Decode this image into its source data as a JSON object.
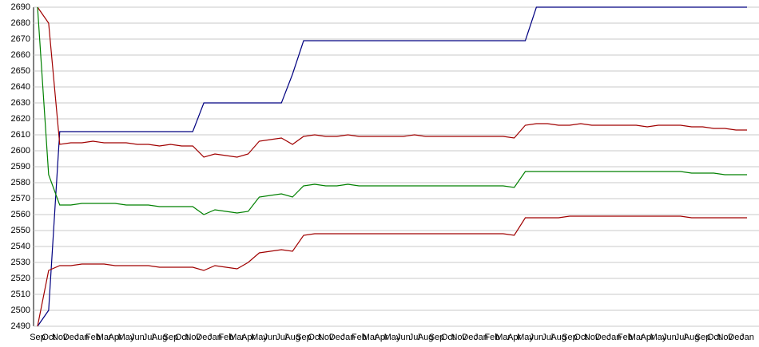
{
  "chart_data": {
    "type": "line",
    "categories": [
      "Sep",
      "Oct",
      "Nov",
      "Dec",
      "Jan",
      "Feb",
      "Mar",
      "Apr",
      "May",
      "Jun",
      "Jul",
      "Aug",
      "Sep",
      "Oct",
      "Nov",
      "Dec",
      "Jan",
      "Feb",
      "Mar",
      "Apr",
      "May",
      "Jun",
      "Jul",
      "Aug",
      "Sep",
      "Oct",
      "Nov",
      "Dec",
      "Jan",
      "Feb",
      "Mar",
      "Apr",
      "May",
      "Jun",
      "Jul",
      "Aug",
      "Sep",
      "Oct",
      "Nov",
      "Dec",
      "Jan",
      "Feb",
      "Mar",
      "Apr",
      "May",
      "Jun",
      "Jul",
      "Aug",
      "Sep",
      "Oct",
      "Nov",
      "Dec",
      "Jan",
      "Feb",
      "Mar",
      "Apr",
      "May",
      "Jun",
      "Jul",
      "Aug",
      "Sep",
      "Oct",
      "Nov",
      "Dec",
      "Jan"
    ],
    "series": [
      {
        "color": "#000080",
        "values": [
          2490,
          2500,
          2612,
          2612,
          2612,
          2612,
          2612,
          2612,
          2612,
          2612,
          2612,
          2612,
          2612,
          2612,
          2612,
          2630,
          2630,
          2630,
          2630,
          2630,
          2630,
          2630,
          2630,
          2648,
          2669,
          2669,
          2669,
          2669,
          2669,
          2669,
          2669,
          2669,
          2669,
          2669,
          2669,
          2669,
          2669,
          2669,
          2669,
          2669,
          2669,
          2669,
          2669,
          2669,
          2669,
          2690,
          2690,
          2690,
          2690,
          2690,
          2690,
          2690,
          2690,
          2690,
          2690,
          2690,
          2690,
          2690,
          2690,
          2690,
          2690,
          2690,
          2690,
          2690,
          2690
        ]
      },
      {
        "color": "#a00000",
        "values": [
          2690,
          2680,
          2604,
          2605,
          2605,
          2606,
          2605,
          2605,
          2605,
          2604,
          2604,
          2603,
          2604,
          2603,
          2603,
          2596,
          2598,
          2597,
          2596,
          2598,
          2606,
          2607,
          2608,
          2604,
          2609,
          2610,
          2609,
          2609,
          2610,
          2609,
          2609,
          2609,
          2609,
          2609,
          2610,
          2609,
          2609,
          2609,
          2609,
          2609,
          2609,
          2609,
          2609,
          2608,
          2616,
          2617,
          2617,
          2616,
          2616,
          2617,
          2616,
          2616,
          2616,
          2616,
          2616,
          2615,
          2616,
          2616,
          2616,
          2615,
          2615,
          2614,
          2614,
          2613,
          2613
        ]
      },
      {
        "color": "#008000",
        "values": [
          2690,
          2585,
          2566,
          2566,
          2567,
          2567,
          2567,
          2567,
          2566,
          2566,
          2566,
          2565,
          2565,
          2565,
          2565,
          2560,
          2563,
          2562,
          2561,
          2562,
          2571,
          2572,
          2573,
          2571,
          2578,
          2579,
          2578,
          2578,
          2579,
          2578,
          2578,
          2578,
          2578,
          2578,
          2578,
          2578,
          2578,
          2578,
          2578,
          2578,
          2578,
          2578,
          2578,
          2577,
          2587,
          2587,
          2587,
          2587,
          2587,
          2587,
          2587,
          2587,
          2587,
          2587,
          2587,
          2587,
          2587,
          2587,
          2587,
          2586,
          2586,
          2586,
          2585,
          2585,
          2585
        ]
      },
      {
        "color": "#a00000",
        "values": [
          2490,
          2525,
          2528,
          2528,
          2529,
          2529,
          2529,
          2528,
          2528,
          2528,
          2528,
          2527,
          2527,
          2527,
          2527,
          2525,
          2528,
          2527,
          2526,
          2530,
          2536,
          2537,
          2538,
          2537,
          2547,
          2548,
          2548,
          2548,
          2548,
          2548,
          2548,
          2548,
          2548,
          2548,
          2548,
          2548,
          2548,
          2548,
          2548,
          2548,
          2548,
          2548,
          2548,
          2547,
          2558,
          2558,
          2558,
          2558,
          2559,
          2559,
          2559,
          2559,
          2559,
          2559,
          2559,
          2559,
          2559,
          2559,
          2559,
          2558,
          2558,
          2558,
          2558,
          2558,
          2558
        ]
      }
    ],
    "ylim": [
      2490,
      2690
    ],
    "yticks": [
      2490,
      2500,
      2510,
      2520,
      2530,
      2540,
      2550,
      2560,
      2570,
      2580,
      2590,
      2600,
      2610,
      2620,
      2630,
      2640,
      2650,
      2660,
      2670,
      2680,
      2690
    ],
    "grid": true
  }
}
